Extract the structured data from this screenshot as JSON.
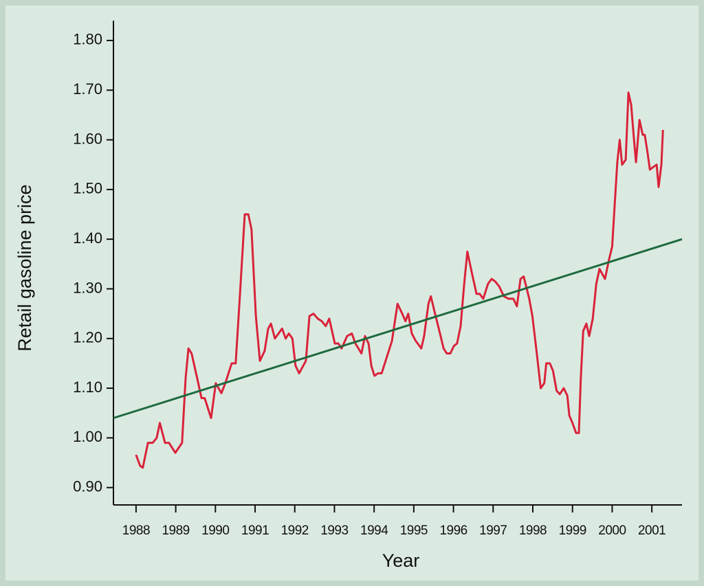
{
  "chart_data": {
    "type": "line",
    "xlabel": "Year",
    "ylabel": "Retail gasoline price",
    "xlim": [
      1987.43,
      2001.76
    ],
    "xticks": [
      1988,
      1989,
      1990,
      1991,
      1992,
      1993,
      1994,
      1995,
      1996,
      1997,
      1998,
      1999,
      2000,
      2001
    ],
    "ylim": [
      0.865,
      1.84
    ],
    "yticks": [
      {
        "value": 0.9,
        "label": "0.90"
      },
      {
        "value": 1.0,
        "label": "1.00"
      },
      {
        "value": 1.1,
        "label": "1.10"
      },
      {
        "value": 1.2,
        "label": "1.20"
      },
      {
        "value": 1.3,
        "label": "1.30"
      },
      {
        "value": 1.4,
        "label": "1.40"
      },
      {
        "value": 1.5,
        "label": "1.50"
      },
      {
        "value": 1.6,
        "label": "1.60"
      },
      {
        "value": 1.7,
        "label": "1.70"
      },
      {
        "value": 1.8,
        "label": "1.80"
      }
    ],
    "grid": false,
    "series": [
      {
        "color": "#d9233a",
        "x": [
          1988.0,
          1988.1,
          1988.17,
          1988.3,
          1988.42,
          1988.52,
          1988.6,
          1988.73,
          1988.83,
          1988.99,
          1989.16,
          1989.25,
          1989.32,
          1989.4,
          1989.54,
          1989.65,
          1989.73,
          1989.89,
          1990.01,
          1990.15,
          1990.25,
          1990.41,
          1990.51,
          1990.62,
          1990.74,
          1990.83,
          1990.91,
          1991.02,
          1991.12,
          1991.24,
          1991.33,
          1991.4,
          1991.5,
          1991.68,
          1991.77,
          1991.85,
          1991.94,
          1992.02,
          1992.11,
          1992.28,
          1992.37,
          1992.47,
          1992.58,
          1992.68,
          1992.78,
          1992.87,
          1993.01,
          1993.1,
          1993.18,
          1993.32,
          1993.44,
          1993.53,
          1993.68,
          1993.77,
          1993.86,
          1993.93,
          1994.01,
          1994.1,
          1994.19,
          1994.27,
          1994.45,
          1994.59,
          1994.71,
          1994.79,
          1994.86,
          1994.95,
          1995.05,
          1995.19,
          1995.26,
          1995.37,
          1995.43,
          1995.52,
          1995.66,
          1995.75,
          1995.83,
          1995.92,
          1996.01,
          1996.09,
          1996.18,
          1996.27,
          1996.35,
          1996.47,
          1996.58,
          1996.66,
          1996.75,
          1996.87,
          1996.96,
          1997.05,
          1997.15,
          1997.27,
          1997.39,
          1997.51,
          1997.6,
          1997.69,
          1997.77,
          1997.91,
          1997.99,
          1998.1,
          1998.2,
          1998.29,
          1998.34,
          1998.43,
          1998.51,
          1998.6,
          1998.68,
          1998.78,
          1998.87,
          1998.92,
          1999.0,
          1999.09,
          1999.16,
          1999.21,
          1999.27,
          1999.35,
          1999.42,
          1999.51,
          1999.6,
          1999.68,
          1999.82,
          1999.91,
          2000.0,
          2000.08,
          2000.13,
          2000.19,
          2000.25,
          2000.34,
          2000.41,
          2000.48,
          2000.55,
          2000.6,
          2000.69,
          2000.77,
          2000.82,
          2000.89,
          2000.95,
          2001.03,
          2001.12,
          2001.17,
          2001.24,
          2001.28
        ],
        "values": [
          0.966,
          0.944,
          0.94,
          0.99,
          0.99,
          1.0,
          1.03,
          0.99,
          0.99,
          0.97,
          0.99,
          1.12,
          1.18,
          1.17,
          1.12,
          1.08,
          1.08,
          1.04,
          1.11,
          1.09,
          1.11,
          1.15,
          1.15,
          1.29,
          1.45,
          1.45,
          1.42,
          1.245,
          1.155,
          1.175,
          1.22,
          1.23,
          1.2,
          1.22,
          1.2,
          1.21,
          1.2,
          1.145,
          1.13,
          1.155,
          1.245,
          1.25,
          1.24,
          1.235,
          1.225,
          1.24,
          1.19,
          1.19,
          1.18,
          1.205,
          1.21,
          1.19,
          1.17,
          1.205,
          1.19,
          1.145,
          1.125,
          1.13,
          1.13,
          1.15,
          1.195,
          1.27,
          1.25,
          1.235,
          1.25,
          1.21,
          1.195,
          1.18,
          1.205,
          1.27,
          1.285,
          1.255,
          1.21,
          1.18,
          1.17,
          1.17,
          1.185,
          1.19,
          1.225,
          1.31,
          1.375,
          1.33,
          1.29,
          1.29,
          1.28,
          1.31,
          1.32,
          1.315,
          1.305,
          1.285,
          1.28,
          1.28,
          1.265,
          1.32,
          1.325,
          1.28,
          1.245,
          1.17,
          1.1,
          1.11,
          1.15,
          1.15,
          1.135,
          1.095,
          1.088,
          1.1,
          1.085,
          1.045,
          1.03,
          1.01,
          1.01,
          1.12,
          1.215,
          1.23,
          1.205,
          1.24,
          1.31,
          1.34,
          1.32,
          1.355,
          1.385,
          1.49,
          1.555,
          1.6,
          1.55,
          1.56,
          1.695,
          1.67,
          1.6,
          1.555,
          1.64,
          1.61,
          1.61,
          1.575,
          1.54,
          1.545,
          1.55,
          1.505,
          1.55,
          1.62
        ]
      },
      {
        "color": "#1e6a3e",
        "x": [
          1987.43,
          2001.76
        ],
        "values": [
          1.04,
          1.4
        ]
      }
    ]
  }
}
